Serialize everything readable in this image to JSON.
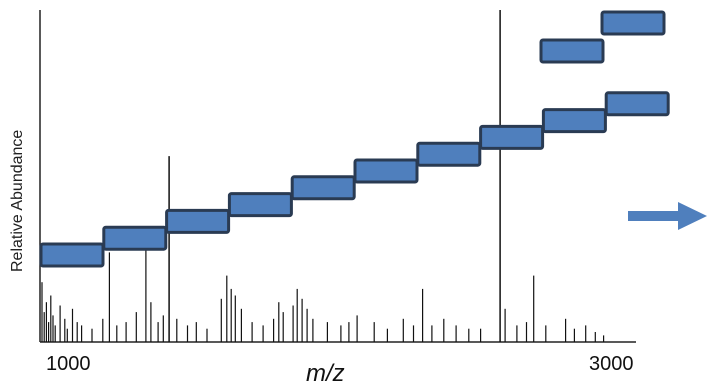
{
  "chart_data": {
    "type": "bar",
    "ylabel": "Relative Abundance",
    "xlabel": "m/z",
    "x_ticks": [
      1000,
      3000
    ],
    "xlim": [
      920,
      3080
    ],
    "ylim": [
      0,
      100
    ],
    "peaks": [
      {
        "x": 920,
        "y": 18
      },
      {
        "x": 928,
        "y": 9
      },
      {
        "x": 936,
        "y": 12
      },
      {
        "x": 944,
        "y": 6
      },
      {
        "x": 952,
        "y": 14
      },
      {
        "x": 960,
        "y": 8
      },
      {
        "x": 968,
        "y": 5
      },
      {
        "x": 986,
        "y": 11
      },
      {
        "x": 1003,
        "y": 7
      },
      {
        "x": 1012,
        "y": 4
      },
      {
        "x": 1031,
        "y": 10
      },
      {
        "x": 1048,
        "y": 6
      },
      {
        "x": 1064,
        "y": 5
      },
      {
        "x": 1102,
        "y": 4
      },
      {
        "x": 1141,
        "y": 7
      },
      {
        "x": 1165,
        "y": 27
      },
      {
        "x": 1192,
        "y": 5
      },
      {
        "x": 1226,
        "y": 6
      },
      {
        "x": 1263,
        "y": 9
      },
      {
        "x": 1298,
        "y": 28
      },
      {
        "x": 1316,
        "y": 12
      },
      {
        "x": 1342,
        "y": 6
      },
      {
        "x": 1361,
        "y": 8
      },
      {
        "x": 1382,
        "y": 56
      },
      {
        "x": 1410,
        "y": 7
      },
      {
        "x": 1449,
        "y": 5
      },
      {
        "x": 1481,
        "y": 6
      },
      {
        "x": 1520,
        "y": 4
      },
      {
        "x": 1572,
        "y": 13
      },
      {
        "x": 1592,
        "y": 20
      },
      {
        "x": 1608,
        "y": 16
      },
      {
        "x": 1623,
        "y": 14
      },
      {
        "x": 1645,
        "y": 10
      },
      {
        "x": 1684,
        "y": 6
      },
      {
        "x": 1724,
        "y": 5
      },
      {
        "x": 1762,
        "y": 7
      },
      {
        "x": 1781,
        "y": 12
      },
      {
        "x": 1797,
        "y": 9
      },
      {
        "x": 1833,
        "y": 11
      },
      {
        "x": 1848,
        "y": 16
      },
      {
        "x": 1866,
        "y": 13
      },
      {
        "x": 1884,
        "y": 10
      },
      {
        "x": 1905,
        "y": 7
      },
      {
        "x": 1958,
        "y": 6
      },
      {
        "x": 2007,
        "y": 5
      },
      {
        "x": 2036,
        "y": 6
      },
      {
        "x": 2066,
        "y": 8
      },
      {
        "x": 2128,
        "y": 6
      },
      {
        "x": 2176,
        "y": 4
      },
      {
        "x": 2234,
        "y": 7
      },
      {
        "x": 2271,
        "y": 5
      },
      {
        "x": 2304,
        "y": 16
      },
      {
        "x": 2338,
        "y": 5
      },
      {
        "x": 2381,
        "y": 7
      },
      {
        "x": 2426,
        "y": 5
      },
      {
        "x": 2472,
        "y": 4
      },
      {
        "x": 2515,
        "y": 4
      },
      {
        "x": 2586,
        "y": 100
      },
      {
        "x": 2604,
        "y": 10
      },
      {
        "x": 2647,
        "y": 5
      },
      {
        "x": 2682,
        "y": 6
      },
      {
        "x": 2708,
        "y": 20
      },
      {
        "x": 2752,
        "y": 5
      },
      {
        "x": 2824,
        "y": 7
      },
      {
        "x": 2856,
        "y": 4
      },
      {
        "x": 2897,
        "y": 5
      },
      {
        "x": 2932,
        "y": 3
      },
      {
        "x": 2962,
        "y": 2
      }
    ]
  },
  "diagram": {
    "bar_fill": "#4f7fbd",
    "bar_stroke": "#2a3b53",
    "arrow_color": "#4f7fbd",
    "step_count": 10,
    "right_pair_count": 2
  }
}
